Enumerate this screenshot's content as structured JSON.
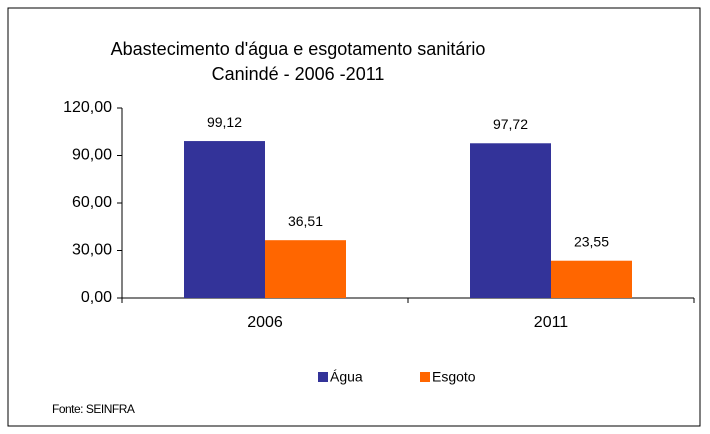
{
  "chart_data": {
    "type": "bar",
    "title": "Abastecimento d'água e esgotamento sanitário",
    "subtitle": "Canindé - 2006 -2011",
    "categories": [
      "2006",
      "2011"
    ],
    "series": [
      {
        "name": "Água",
        "color": "#333399",
        "values": [
          99.12,
          97.72
        ],
        "value_labels": [
          "99,12",
          "97,72"
        ]
      },
      {
        "name": "Esgoto",
        "color": "#ff6600",
        "values": [
          36.51,
          23.55
        ],
        "value_labels": [
          "36,51",
          "23,55"
        ]
      }
    ],
    "ylim": [
      0,
      120
    ],
    "yticks": [
      {
        "value": 0,
        "label": "0,00"
      },
      {
        "value": 30,
        "label": "30,00"
      },
      {
        "value": 60,
        "label": "60,00"
      },
      {
        "value": 90,
        "label": "90,00"
      },
      {
        "value": 120,
        "label": "120,00"
      }
    ],
    "grid": false,
    "legend": "bottom",
    "source": "Fonte: SEINFRA"
  }
}
